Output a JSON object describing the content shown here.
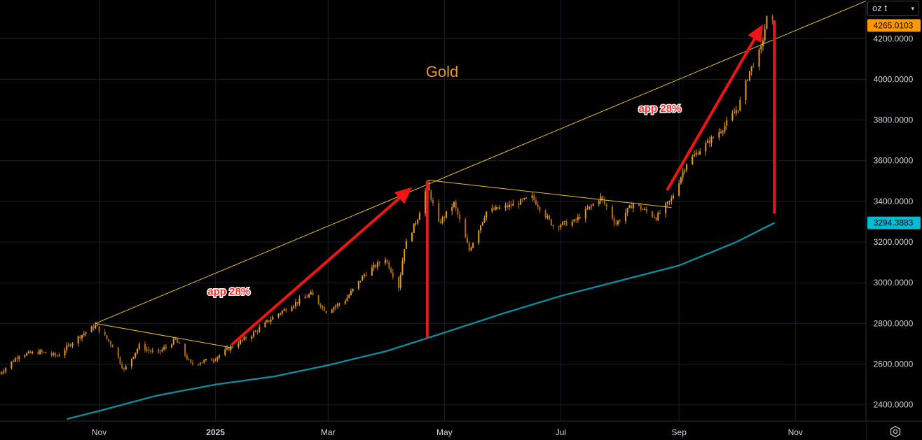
{
  "price_scale": {
    "unit_label": "oz t",
    "unit_chevron": "chevron-down-icon",
    "settings_icon": "gear-icon"
  },
  "chart_data": {
    "type": "candlestick",
    "title": "Gold",
    "ylim": [
      2320,
      4390
    ],
    "y_ticks": [
      2400,
      2600,
      2800,
      3000,
      3200,
      3400,
      3600,
      3800,
      4000,
      4200
    ],
    "y_tick_labels": [
      "2400.0000",
      "2600.0000",
      "2800.0000",
      "3000.0000",
      "3200.0000",
      "3400.0000",
      "3600.0000",
      "3800.0000",
      "4000.0000",
      "4200.0000"
    ],
    "x_labels": [
      {
        "label": "Nov",
        "date": "2024-11-01",
        "bold": false
      },
      {
        "label": "2025",
        "date": "2025-01-01",
        "bold": true
      },
      {
        "label": "Mar",
        "date": "2025-03-01",
        "bold": false
      },
      {
        "label": "May",
        "date": "2025-05-01",
        "bold": false
      },
      {
        "label": "Jul",
        "date": "2025-07-01",
        "bold": false
      },
      {
        "label": "Sep",
        "date": "2025-09-01",
        "bold": false
      },
      {
        "label": "Nov",
        "date": "2025-11-01",
        "bold": false
      }
    ],
    "x_range": [
      "2024-09-10",
      "2025-12-08"
    ],
    "price_key_points": [
      [
        "2024-09-10",
        2555
      ],
      [
        "2024-09-20",
        2645
      ],
      [
        "2024-10-01",
        2660
      ],
      [
        "2024-10-10",
        2640
      ],
      [
        "2024-10-20",
        2725
      ],
      [
        "2024-10-30",
        2790
      ],
      [
        "2024-11-08",
        2690
      ],
      [
        "2024-11-14",
        2570
      ],
      [
        "2024-11-22",
        2690
      ],
      [
        "2024-12-01",
        2650
      ],
      [
        "2024-12-11",
        2720
      ],
      [
        "2024-12-19",
        2600
      ],
      [
        "2024-12-31",
        2625
      ],
      [
        "2025-01-10",
        2690
      ],
      [
        "2025-01-20",
        2745
      ],
      [
        "2025-01-31",
        2830
      ],
      [
        "2025-02-10",
        2890
      ],
      [
        "2025-02-20",
        2945
      ],
      [
        "2025-02-28",
        2860
      ],
      [
        "2025-03-10",
        2915
      ],
      [
        "2025-03-20",
        3040
      ],
      [
        "2025-03-31",
        3120
      ],
      [
        "2025-04-07",
        2980
      ],
      [
        "2025-04-10",
        3175
      ],
      [
        "2025-04-17",
        3320
      ],
      [
        "2025-04-22",
        3480
      ],
      [
        "2025-04-28",
        3290
      ],
      [
        "2025-05-06",
        3390
      ],
      [
        "2025-05-14",
        3160
      ],
      [
        "2025-05-23",
        3350
      ],
      [
        "2025-06-05",
        3380
      ],
      [
        "2025-06-16",
        3420
      ],
      [
        "2025-06-27",
        3280
      ],
      [
        "2025-07-08",
        3300
      ],
      [
        "2025-07-22",
        3420
      ],
      [
        "2025-07-30",
        3290
      ],
      [
        "2025-08-08",
        3390
      ],
      [
        "2025-08-20",
        3320
      ],
      [
        "2025-08-28",
        3410
      ],
      [
        "2025-09-05",
        3590
      ],
      [
        "2025-09-15",
        3680
      ],
      [
        "2025-09-24",
        3760
      ],
      [
        "2025-10-02",
        3860
      ],
      [
        "2025-10-08",
        4040
      ],
      [
        "2025-10-14",
        4150
      ],
      [
        "2025-10-17",
        4300
      ],
      [
        "2025-10-21",
        4265
      ]
    ],
    "moving_average": {
      "color": "#0c8b9a",
      "points": [
        [
          "2024-10-15",
          2330
        ],
        [
          "2024-11-01",
          2370
        ],
        [
          "2024-12-01",
          2445
        ],
        [
          "2025-01-01",
          2500
        ],
        [
          "2025-02-01",
          2540
        ],
        [
          "2025-03-01",
          2595
        ],
        [
          "2025-04-01",
          2665
        ],
        [
          "2025-05-01",
          2755
        ],
        [
          "2025-06-01",
          2850
        ],
        [
          "2025-07-01",
          2935
        ],
        [
          "2025-08-01",
          3010
        ],
        [
          "2025-09-01",
          3085
        ],
        [
          "2025-10-01",
          3200
        ],
        [
          "2025-10-21",
          3294.3883
        ]
      ]
    },
    "trendlines": [
      {
        "color": "#e6c229",
        "from": [
          "2024-10-30",
          2800
        ],
        "to": [
          "2025-12-08",
          4385
        ]
      },
      {
        "color": "#e6c229",
        "from": [
          "2024-10-30",
          2800
        ],
        "to": [
          "2025-01-10",
          2680
        ]
      },
      {
        "color": "#e6c229",
        "from": [
          "2025-04-22",
          3505
        ],
        "to": [
          "2025-08-28",
          3370
        ]
      }
    ],
    "arrows": [
      {
        "from": [
          "2025-01-10",
          2700
        ],
        "to": [
          "2025-04-14",
          3470
        ],
        "color": "#f01515"
      },
      {
        "from": [
          "2025-08-26",
          3460
        ],
        "to": [
          "2025-10-15",
          4270
        ],
        "color": "#f01515"
      }
    ],
    "vertical_bars": [
      {
        "date": "2025-04-22",
        "from": 3500,
        "to": 2730,
        "color": "#e21c1c"
      },
      {
        "date": "2025-10-21",
        "from": 4290,
        "to": 3340,
        "color": "#e21c1c"
      }
    ],
    "annotations": [
      {
        "text": "app 28%",
        "date": "2025-01-08",
        "value": 2940
      },
      {
        "text": "app 28%",
        "date": "2025-08-22",
        "value": 3840
      }
    ],
    "price_labels": [
      {
        "text": "4265.0103",
        "value": 4265.0103,
        "color": "#ff9800",
        "text_color": "#000000"
      },
      {
        "text": "3294.3883",
        "value": 3294.3883,
        "color": "#00bcd4",
        "text_color": "#000000"
      }
    ],
    "candle_color_up": "#e89a1c",
    "candle_color_down": "#b06a10",
    "grid": true,
    "grid_color": "#1c1f26",
    "axis_text_color": "#d1d4dc",
    "title_color": "#e89a1c"
  }
}
